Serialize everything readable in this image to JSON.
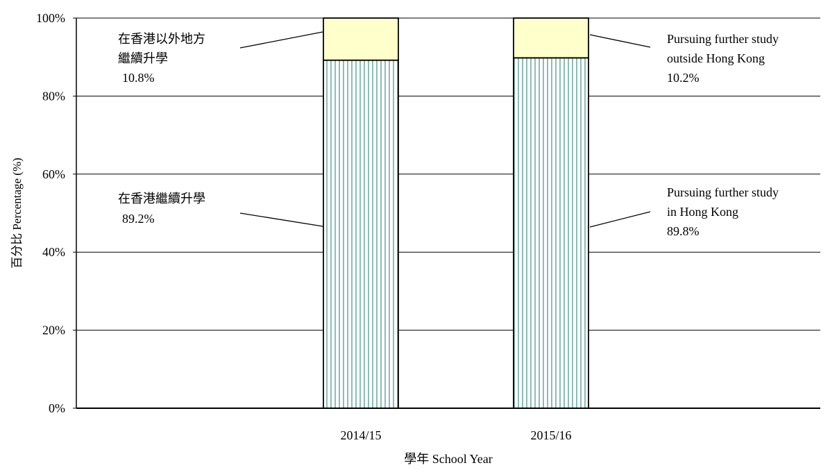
{
  "chart_data": {
    "type": "bar",
    "stacked": true,
    "percent_scale": true,
    "categories": [
      "2014/15",
      "2015/16"
    ],
    "series": [
      {
        "name": "",
        "values": [
          89.2,
          89.8
        ],
        "color": "#3f8f86",
        "pattern": "vertical-lines"
      },
      {
        "name": "",
        "values": [
          10.8,
          10.2
        ],
        "color": "#ffffcc"
      }
    ],
    "xlabel": "學年  School Year",
    "ylabel": "百分比 Percentage (%)",
    "ylim": [
      0,
      100
    ],
    "yticks": [
      "0%",
      "20%",
      "40%",
      "60%",
      "80%",
      "100%"
    ],
    "grid": true,
    "annotations": [
      {
        "lines": [
          "在香港以外地方",
          "繼續升學",
          "10.8%"
        ]
      },
      {
        "lines": [
          "Pursuing further study",
          "outside Hong Kong",
          "10.2%"
        ]
      },
      {
        "lines": [
          "在香港繼續升學",
          "89.2%"
        ]
      },
      {
        "lines": [
          "Pursuing further study",
          "in Hong Kong",
          "89.8%"
        ]
      }
    ]
  }
}
